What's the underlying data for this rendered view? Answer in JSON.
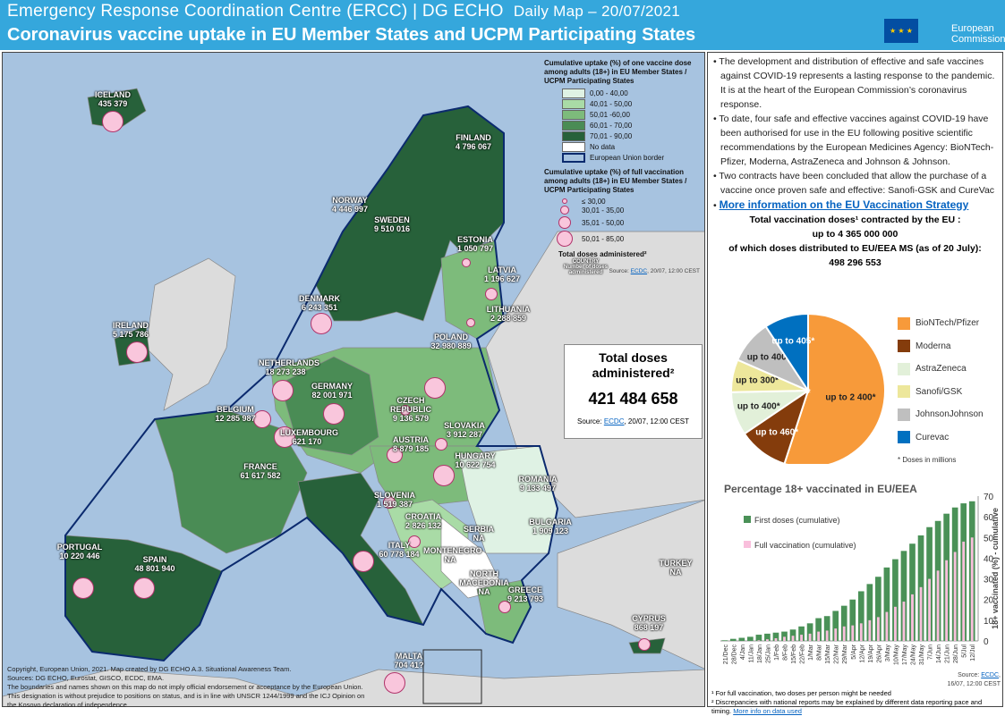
{
  "header": {
    "title_org": "Emergency Response Coordination Centre (ERCC) | DG ECHO",
    "title_daily": "Daily Map – 20/07/2021",
    "subtitle": "Coronavirus vaccine uptake in EU Member States and UCPM Participating States",
    "logo_text": "European Commission"
  },
  "legend": {
    "title_one_dose": "Cumulative uptake (%) of one vaccine dose among adults (18+) in EU Member States / UCPM Participating States",
    "classes": [
      {
        "label": "0,00 - 40,00",
        "color": "#dff2e4"
      },
      {
        "label": "40,01 - 50,00",
        "color": "#a9dba6"
      },
      {
        "label": "50,01 -60,00",
        "color": "#7dbb7b"
      },
      {
        "label": "60,01 - 70,00",
        "color": "#4a8c55"
      },
      {
        "label": "70,01 - 90,00",
        "color": "#27613a"
      },
      {
        "label": "No data",
        "color": "#ffffff"
      },
      {
        "label": "European  Union border",
        "color": "#0b2a6e"
      }
    ],
    "title_full": "Cumulative uptake (%) of full vaccination among adults (18+) in EU Member States / UCPM Participating States",
    "circles": [
      "≤ 30,00",
      "30,01 - 35,00",
      "35,01 - 50,00",
      "50,01 - 85,00"
    ],
    "doses_title": "Total doses administered²",
    "doses_example": "COUNTRY\nNumber of doses\nadministered",
    "source": "Source:",
    "source_link": "ECDC",
    "source_date": ", 20/07, 12:00 CEST"
  },
  "countries": [
    {
      "name": "ICELAND",
      "doses": "435 379"
    },
    {
      "name": "FINLAND",
      "doses": "4 796 067"
    },
    {
      "name": "NORWAY",
      "doses": "4 446 997"
    },
    {
      "name": "SWEDEN",
      "doses": "9 510 016"
    },
    {
      "name": "ESTONIA",
      "doses": "1 050 797"
    },
    {
      "name": "LATVIA",
      "doses": "1 196 627"
    },
    {
      "name": "LITHUANIA",
      "doses": "2 288 859"
    },
    {
      "name": "DENMARK",
      "doses": "6 243 351"
    },
    {
      "name": "IRELAND",
      "doses": "5 175 786"
    },
    {
      "name": "NETHERLANDS",
      "doses": "18 273 238"
    },
    {
      "name": "POLAND",
      "doses": "32 980 889"
    },
    {
      "name": "GERMANY",
      "doses": "82 001 971"
    },
    {
      "name": "BELGIUM",
      "doses": "12 285 987"
    },
    {
      "name": "LUXEMBOURG",
      "doses": "621 170"
    },
    {
      "name": "CZECH\nREPUBLIC",
      "doses": "9 136 579"
    },
    {
      "name": "SLOVAKIA",
      "doses": "3 912 287"
    },
    {
      "name": "AUSTRIA",
      "doses": "8 879 185"
    },
    {
      "name": "HUNGARY",
      "doses": "10 622 754"
    },
    {
      "name": "FRANCE",
      "doses": "61 617 582"
    },
    {
      "name": "ROMANIA",
      "doses": "9 133 497"
    },
    {
      "name": "SLOVENIA",
      "doses": "1 519 387"
    },
    {
      "name": "CROATIA",
      "doses": "2 826 132"
    },
    {
      "name": "SERBIA",
      "doses": "NA"
    },
    {
      "name": "MONTENEGRO",
      "doses": "NA"
    },
    {
      "name": "NORTH\nMACEDONIA",
      "doses": "NA"
    },
    {
      "name": "BULGARIA",
      "doses": "1 909 123"
    },
    {
      "name": "ITALY",
      "doses": "60 778 184"
    },
    {
      "name": "PORTUGAL",
      "doses": "10 220 446"
    },
    {
      "name": "SPAIN",
      "doses": "48 801 940"
    },
    {
      "name": "GREECE",
      "doses": "9 213 793"
    },
    {
      "name": "TURKEY",
      "doses": "NA"
    },
    {
      "name": "CYPRUS",
      "doses": "868 197"
    },
    {
      "name": "MALTA",
      "doses": "704 41?"
    }
  ],
  "total_box": {
    "title": "Total doses administered²",
    "value": "421 484 658",
    "source": "Source:",
    "source_link": "ECDC",
    "source_date": ", 20/07, 12:00 CEST"
  },
  "copyright": {
    "line1": "Copyright, European Union, 2021. Map created by DG ECHO A.3. Situational Awareness Team.",
    "line2": "Sources: DG ECHO, Eurostat, GISCO, ECDC, EMA.",
    "line3": "The boundaries and names shown on this map do not imply official endorsement or acceptance by the European Union. This designation is without prejudice to positions on status, and is in line with UNSCR 1244/1999 and the ICJ Opinion on the Kosovo declaration of independence"
  },
  "bullets": [
    "The development and distribution of effective and safe vaccines against COVID-19 represents a lasting response to the pandemic. It is at the heart of the European Commission’s coronavirus response.",
    "To date, four safe and effective vaccines against COVID-19 have been authorised for use in the EU following positive scientific recommendations by the European Medicines Agency: BioNTech-Pfizer, Moderna, AstraZeneca and Johnson & Johnson.",
    "Two contracts have been concluded that allow the purchase of a vaccine once proven safe and effective: Sanofi-GSK and CureVac"
  ],
  "more_info_link": "More information on the EU Vaccination Strategy",
  "contracted": {
    "line1": "Total vaccination doses¹ contracted by the EU :",
    "line2": "up to  4 365 000 000",
    "line3": "of which doses distributed to EU/EEA MS (as of 20 July):",
    "line4": "498 296 553"
  },
  "chart_data": [
    {
      "type": "pie",
      "unit": "Doses in millions",
      "note": "* Doses in millions",
      "slices": [
        {
          "name": "BioNTech/Pfizer",
          "value": 2400,
          "label": "up to 2 400*",
          "color": "#f79a3a"
        },
        {
          "name": "Moderna",
          "value": 460,
          "label": "up to 460*",
          "color": "#843c0c"
        },
        {
          "name": "AstraZeneca",
          "value": 400,
          "label": "up to 400*",
          "color": "#e2f0d9"
        },
        {
          "name": "Sanofi/GSK",
          "value": 300,
          "label": "up to 300*",
          "color": "#ede79b"
        },
        {
          "name": "JohnsonJohnson",
          "value": 400,
          "label": "up to 400*",
          "color": "#bfbfbf"
        },
        {
          "name": "Curevac",
          "value": 405,
          "label": "up to 405*",
          "color": "#0070c0"
        }
      ]
    },
    {
      "type": "bar",
      "title": "Percentage 18+ vaccinated in EU/EEA",
      "ylabel": "18+ vaccinated (%) - cumulative",
      "ylim": [
        0,
        70
      ],
      "yticks": [
        0,
        10,
        20,
        30,
        40,
        50,
        60,
        70
      ],
      "categories": [
        "21/Dec",
        "28/Dec",
        "4/Jan",
        "11/Jan",
        "18/Jan",
        "25/Jan",
        "1/Feb",
        "8/Feb",
        "15/Feb",
        "22/Feb",
        "1/Mar",
        "8/Mar",
        "15/Mar",
        "22/Mar",
        "29/Mar",
        "5/Apr",
        "12/Apr",
        "19/Apr",
        "26/Apr",
        "3/May",
        "10/May",
        "17/May",
        "24/May",
        "31/May",
        "7/Jun",
        "14/Jun",
        "21/Jun",
        "28/Jun",
        "5/Jul",
        "12/Jul"
      ],
      "series": [
        {
          "name": "First doses (cumulative)",
          "color": "#4a9157",
          "values": [
            0.3,
            1,
            1.5,
            2,
            3,
            3.5,
            4,
            4.5,
            5.5,
            7,
            8.5,
            11,
            12,
            14.5,
            17,
            20,
            24,
            27.5,
            31,
            35.5,
            39.5,
            43.5,
            47,
            51,
            55,
            58,
            61.5,
            64.5,
            66.5,
            67.5
          ]
        },
        {
          "name": "Full vaccination (cumulative)",
          "color": "#f9bfdc",
          "values": [
            0,
            0,
            0,
            0,
            0.3,
            0.8,
            1.3,
            2,
            2.5,
            3,
            3.5,
            4.5,
            5,
            6,
            7,
            7.5,
            8.5,
            10,
            11.5,
            14,
            16.5,
            19,
            22.5,
            26,
            30,
            34,
            39,
            43,
            48,
            50
          ]
        }
      ],
      "source": "Source:",
      "source_link": "ECDC",
      "source_date": "16/07, 12:00 CEST"
    }
  ],
  "footnotes": {
    "f1": "¹ For full vaccination, two doses per person might be needed",
    "f2": "² Discrepancies with national reports may be explained by different data reporting pace and timing.",
    "link": "More info on data used"
  }
}
